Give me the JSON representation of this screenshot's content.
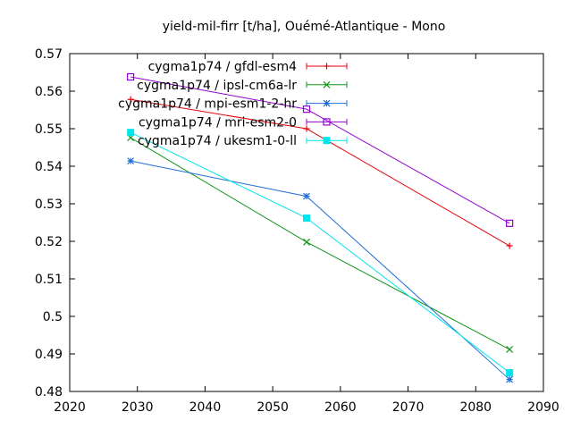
{
  "chart_data": {
    "type": "line",
    "title": "yield-mil-firr [t/ha], Ouémé-Atlantique - Mono",
    "xlabel": "",
    "ylabel": "",
    "xlim": [
      2020,
      2090
    ],
    "ylim": [
      0.48,
      0.57
    ],
    "x_ticks": [
      "2020",
      "2030",
      "2040",
      "2050",
      "2060",
      "2070",
      "2080",
      "2090"
    ],
    "y_ticks": [
      "0.48",
      "0.49",
      "0.5",
      "0.51",
      "0.52",
      "0.53",
      "0.54",
      "0.55",
      "0.56",
      "0.57"
    ],
    "grid": false,
    "legend_position": "top-right",
    "series": [
      {
        "name": "cygma1p74 / gfdl-esm4",
        "color": "#e8000b",
        "marker": "plus",
        "points": [
          [
            2029,
            0.5578
          ],
          [
            2055,
            0.55
          ],
          [
            2085,
            0.5188
          ]
        ]
      },
      {
        "name": "cygma1p74 / ipsl-cm6a-lr",
        "color": "#109618",
        "marker": "cross",
        "points": [
          [
            2029,
            0.5476
          ],
          [
            2055,
            0.5198
          ],
          [
            2085,
            0.4912
          ]
        ]
      },
      {
        "name": "cygma1p74 / mpi-esm1-2-hr",
        "color": "#1f6fd8",
        "marker": "star",
        "points": [
          [
            2029,
            0.5414
          ],
          [
            2055,
            0.532
          ],
          [
            2085,
            0.4832
          ]
        ]
      },
      {
        "name": "cygma1p74 / mri-esm2-0",
        "color": "#9400d3",
        "marker": "square-open",
        "points": [
          [
            2029,
            0.5638
          ],
          [
            2055,
            0.5552
          ],
          [
            2085,
            0.5248
          ]
        ]
      },
      {
        "name": "cygma1p74 / ukesm1-0-ll",
        "color": "#00e5ee",
        "marker": "square-filled",
        "points": [
          [
            2029,
            0.549
          ],
          [
            2055,
            0.5262
          ],
          [
            2085,
            0.485
          ]
        ]
      }
    ]
  }
}
